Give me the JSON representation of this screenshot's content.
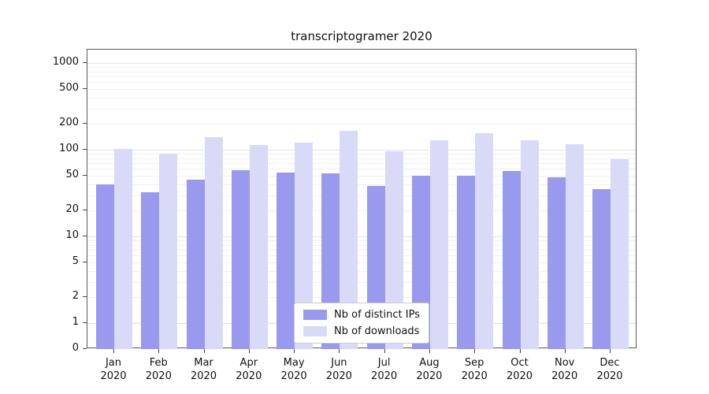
{
  "chart_data": {
    "type": "bar",
    "title": "transcriptogramer 2020",
    "categories": [
      "Jan 2020",
      "Feb 2020",
      "Mar 2020",
      "Apr 2020",
      "May 2020",
      "Jun 2020",
      "Jul 2020",
      "Aug 2020",
      "Sep 2020",
      "Oct 2020",
      "Nov 2020",
      "Dec 2020"
    ],
    "series": [
      {
        "name": "Nb of distinct IPs",
        "color": "#9999ee",
        "values": [
          40,
          32,
          45,
          58,
          54,
          53,
          38,
          50,
          50,
          57,
          48,
          35
        ]
      },
      {
        "name": "Nb of downloads",
        "color": "#d9d9f8",
        "values": [
          102,
          90,
          140,
          114,
          120,
          165,
          97,
          130,
          155,
          130,
          115,
          78
        ]
      }
    ],
    "yscale": "symlog",
    "yticks": [
      0,
      1,
      2,
      5,
      10,
      20,
      50,
      100,
      200,
      500,
      1000
    ],
    "ylim": [
      0,
      1400
    ],
    "xlabel": "",
    "ylabel": "",
    "grid": "horizontal-minor",
    "legend_position": "lower center"
  }
}
